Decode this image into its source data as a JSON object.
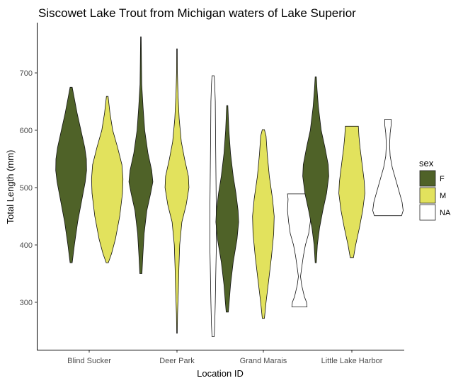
{
  "chart_data": {
    "type": "violin",
    "title": "Siscowet Lake Trout from Michigan waters of Lake Superior",
    "xlabel": "Location ID",
    "ylabel": "Total Length (mm)",
    "ylim": [
      220,
      790
    ],
    "yticks": [
      300,
      400,
      500,
      600,
      700
    ],
    "grid": false,
    "legend": {
      "title": "sex",
      "position": "right",
      "entries": [
        "F",
        "M",
        "NA"
      ]
    },
    "colors": {
      "F": "#4f6228",
      "M": "#e2e25d",
      "NA": "#ffffff"
    },
    "categories": [
      "Blind Sucker",
      "Deer Park",
      "Grand Marais",
      "Little Lake Harbor"
    ],
    "groups": [
      {
        "location": "Blind Sucker",
        "violins": [
          {
            "sex": "F",
            "min": 369,
            "max": 675,
            "profile": [
              [
                369,
                0.02
              ],
              [
                400,
                0.06
              ],
              [
                440,
                0.12
              ],
              [
                480,
                0.2
              ],
              [
                510,
                0.26
              ],
              [
                530,
                0.285
              ],
              [
                550,
                0.28
              ],
              [
                570,
                0.25
              ],
              [
                600,
                0.18
              ],
              [
                630,
                0.11
              ],
              [
                660,
                0.05
              ],
              [
                675,
                0.02
              ]
            ]
          },
          {
            "sex": "M",
            "min": 369,
            "max": 659,
            "profile": [
              [
                369,
                0.02
              ],
              [
                385,
                0.08
              ],
              [
                410,
                0.15
              ],
              [
                450,
                0.23
              ],
              [
                490,
                0.28
              ],
              [
                515,
                0.29
              ],
              [
                540,
                0.27
              ],
              [
                570,
                0.19
              ],
              [
                600,
                0.1
              ],
              [
                630,
                0.05
              ],
              [
                659,
                0.015
              ]
            ]
          }
        ]
      },
      {
        "location": "Deer Park",
        "violins": [
          {
            "sex": "F",
            "min": 350,
            "max": 763,
            "profile": [
              [
                350,
                0.02
              ],
              [
                380,
                0.035
              ],
              [
                420,
                0.06
              ],
              [
                460,
                0.11
              ],
              [
                490,
                0.18
              ],
              [
                510,
                0.22
              ],
              [
                530,
                0.2
              ],
              [
                560,
                0.13
              ],
              [
                600,
                0.07
              ],
              [
                640,
                0.04
              ],
              [
                680,
                0.015
              ],
              [
                720,
                0.01
              ],
              [
                763,
                0.005
              ]
            ]
          },
          {
            "sex": "M",
            "min": 246,
            "max": 742,
            "profile": [
              [
                246,
                0.005
              ],
              [
                280,
                0.01
              ],
              [
                320,
                0.025
              ],
              [
                360,
                0.035
              ],
              [
                400,
                0.05
              ],
              [
                440,
                0.09
              ],
              [
                470,
                0.17
              ],
              [
                500,
                0.22
              ],
              [
                520,
                0.21
              ],
              [
                550,
                0.14
              ],
              [
                580,
                0.08
              ],
              [
                620,
                0.04
              ],
              [
                660,
                0.02
              ],
              [
                700,
                0.008
              ],
              [
                742,
                0.005
              ]
            ]
          },
          {
            "sex": "NA",
            "min": 240,
            "max": 695,
            "profile": [
              [
                240,
                0.02
              ],
              [
                260,
                0.03
              ],
              [
                300,
                0.04
              ],
              [
                350,
                0.05
              ],
              [
                400,
                0.06
              ],
              [
                450,
                0.06
              ],
              [
                500,
                0.055
              ],
              [
                550,
                0.05
              ],
              [
                600,
                0.045
              ],
              [
                650,
                0.04
              ],
              [
                680,
                0.03
              ],
              [
                695,
                0.02
              ]
            ]
          }
        ]
      },
      {
        "location": "Grand Marais",
        "violins": [
          {
            "sex": "F",
            "min": 283,
            "max": 643,
            "profile": [
              [
                283,
                0.02
              ],
              [
                300,
                0.035
              ],
              [
                330,
                0.06
              ],
              [
                370,
                0.11
              ],
              [
                410,
                0.18
              ],
              [
                440,
                0.21
              ],
              [
                460,
                0.2
              ],
              [
                490,
                0.16
              ],
              [
                520,
                0.11
              ],
              [
                560,
                0.06
              ],
              [
                600,
                0.03
              ],
              [
                643,
                0.01
              ]
            ]
          },
          {
            "sex": "M",
            "min": 272,
            "max": 601,
            "profile": [
              [
                272,
                0.02
              ],
              [
                300,
                0.05
              ],
              [
                340,
                0.1
              ],
              [
                380,
                0.15
              ],
              [
                420,
                0.19
              ],
              [
                450,
                0.2
              ],
              [
                480,
                0.17
              ],
              [
                520,
                0.11
              ],
              [
                560,
                0.07
              ],
              [
                590,
                0.05
              ],
              [
                601,
                0.02
              ]
            ]
          },
          {
            "sex": "NA",
            "min": 292,
            "max": 489,
            "profile": [
              [
                292,
                0.14
              ],
              [
                300,
                0.13
              ],
              [
                310,
                0.09
              ],
              [
                330,
                0.04
              ],
              [
                345,
                0.02
              ],
              [
                360,
                0.04
              ],
              [
                380,
                0.07
              ],
              [
                400,
                0.11
              ],
              [
                420,
                0.17
              ],
              [
                440,
                0.2
              ],
              [
                460,
                0.22
              ],
              [
                480,
                0.21
              ],
              [
                489,
                0.22
              ]
            ]
          }
        ]
      },
      {
        "location": "Little Lake Harbor",
        "violins": [
          {
            "sex": "F",
            "min": 369,
            "max": 693,
            "profile": [
              [
                369,
                0.01
              ],
              [
                400,
                0.03
              ],
              [
                430,
                0.07
              ],
              [
                460,
                0.13
              ],
              [
                490,
                0.2
              ],
              [
                520,
                0.24
              ],
              [
                540,
                0.23
              ],
              [
                570,
                0.17
              ],
              [
                600,
                0.1
              ],
              [
                640,
                0.05
              ],
              [
                670,
                0.025
              ],
              [
                693,
                0.01
              ]
            ]
          },
          {
            "sex": "M",
            "min": 378,
            "max": 607,
            "profile": [
              [
                378,
                0.03
              ],
              [
                400,
                0.07
              ],
              [
                430,
                0.14
              ],
              [
                460,
                0.2
              ],
              [
                490,
                0.24
              ],
              [
                510,
                0.23
              ],
              [
                540,
                0.19
              ],
              [
                570,
                0.15
              ],
              [
                590,
                0.13
              ],
              [
                607,
                0.12
              ]
            ]
          },
          {
            "sex": "NA",
            "min": 451,
            "max": 619,
            "profile": [
              [
                451,
                0.25
              ],
              [
                460,
                0.28
              ],
              [
                475,
                0.26
              ],
              [
                495,
                0.2
              ],
              [
                515,
                0.14
              ],
              [
                535,
                0.08
              ],
              [
                555,
                0.04
              ],
              [
                575,
                0.03
              ],
              [
                595,
                0.04
              ],
              [
                610,
                0.06
              ],
              [
                619,
                0.06
              ]
            ]
          }
        ]
      }
    ]
  }
}
